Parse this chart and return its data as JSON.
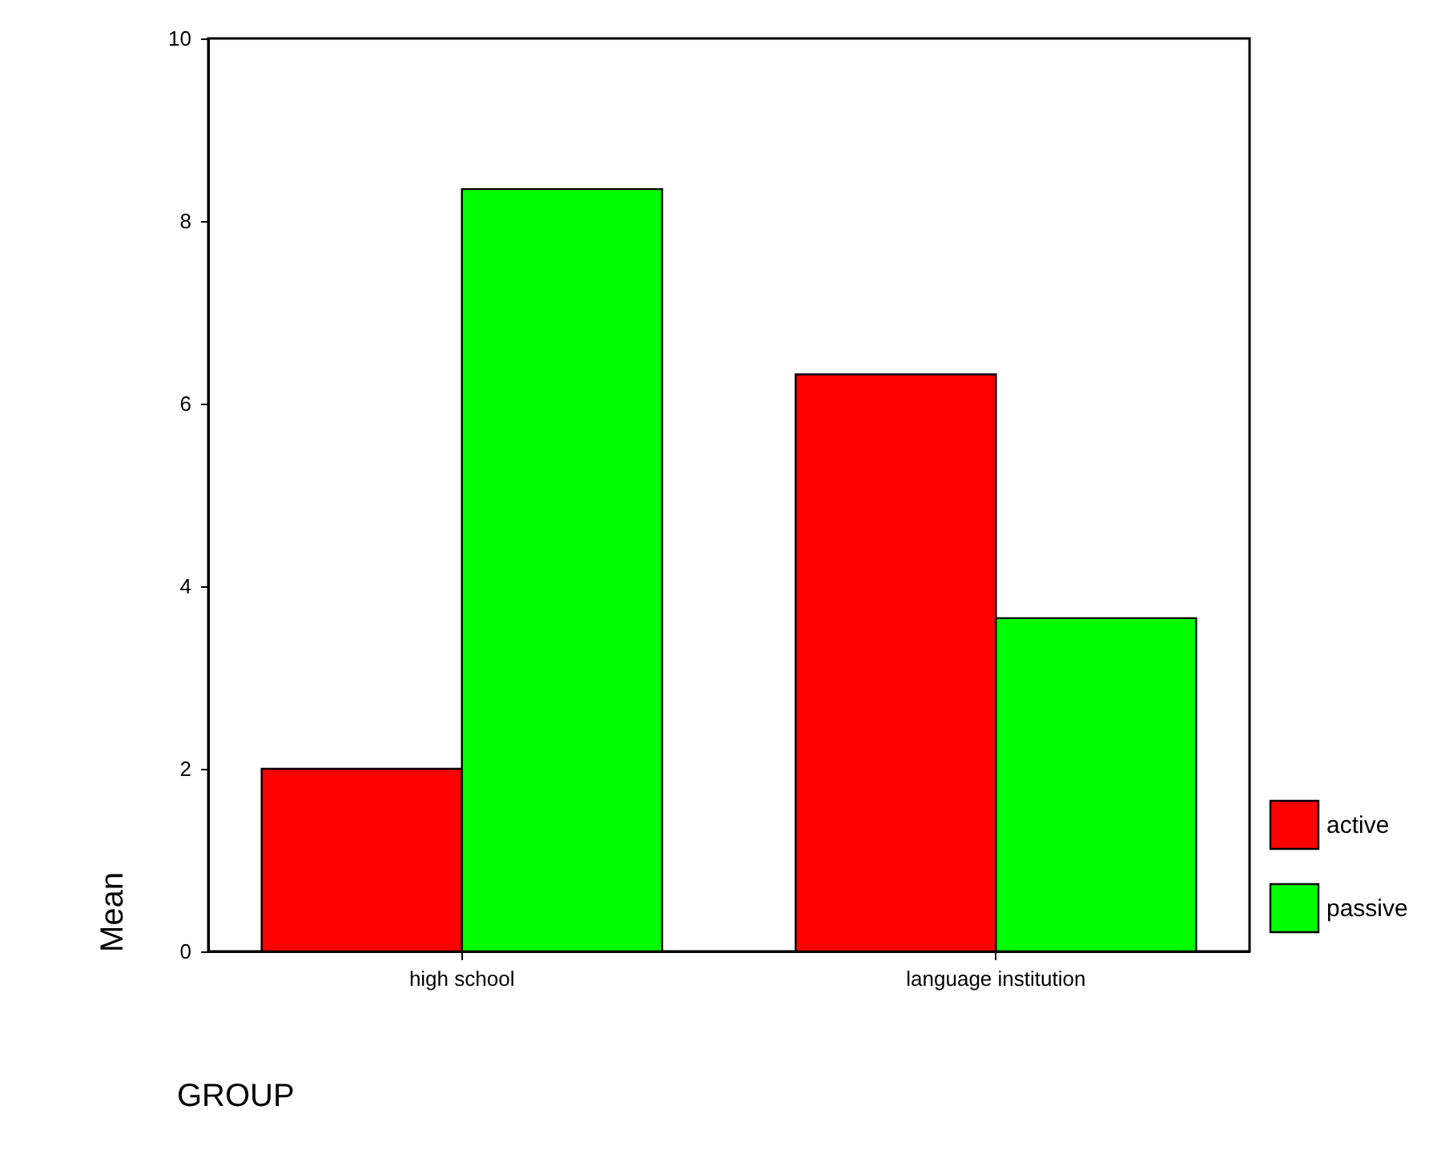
{
  "chart_data": {
    "type": "bar",
    "xlabel": "GROUP",
    "ylabel": "Mean",
    "categories": [
      "high school",
      "language institution"
    ],
    "series": [
      {
        "name": "active",
        "color": "#ff0000",
        "values": [
          2.0,
          6.32
        ]
      },
      {
        "name": "passive",
        "color": "#00ff00",
        "values": [
          8.35,
          3.65
        ]
      }
    ],
    "ylim": [
      0,
      10
    ],
    "yticks": [
      0,
      2,
      4,
      6,
      8,
      10
    ],
    "legend": "bottom right",
    "grid": false
  }
}
